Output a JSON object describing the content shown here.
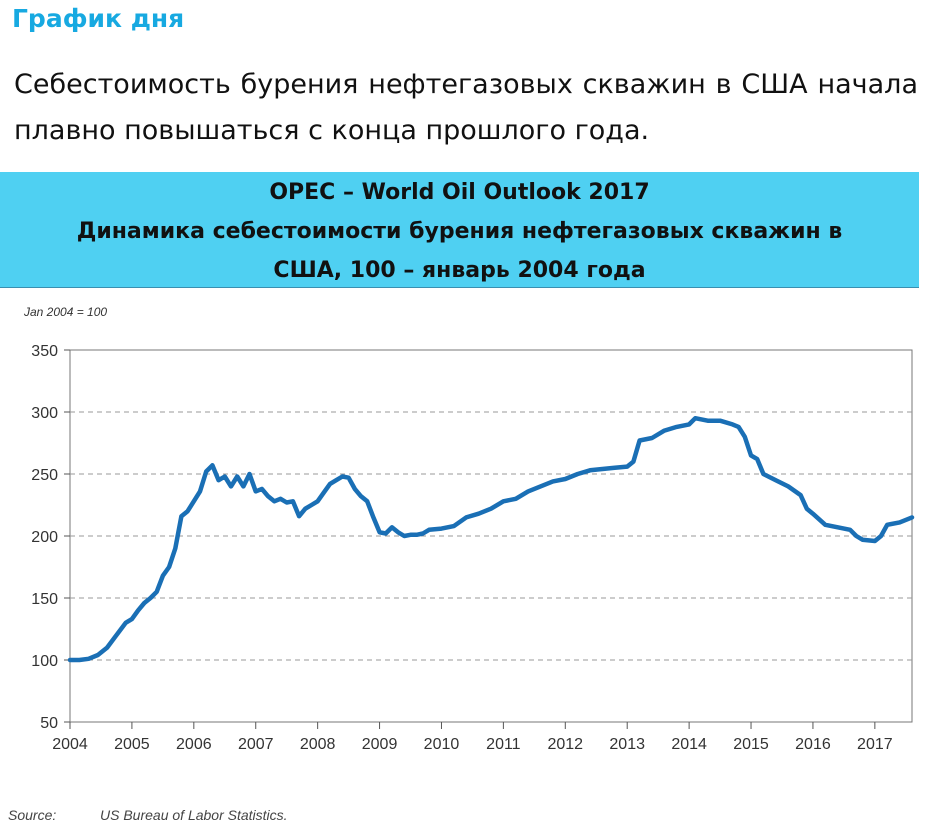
{
  "heading": "График дня",
  "lead": "Себестоимость бурения нефтегазовых скважин в США начала плавно повышаться с конца прошлого года.",
  "banner": {
    "line1": "OPEC – World Oil Outlook 2017",
    "line2": "Динамика себестоимости бурения нефтегазовых скважин в",
    "line3": "США, 100 – январь 2004 года"
  },
  "index_note": "Jan 2004 = 100",
  "source": {
    "label": "Source:",
    "text": "US Bureau of Labor Statistics."
  },
  "colors": {
    "heading": "#17a9e1",
    "banner_bg": "#4fd0f2",
    "line": "#1a6fb5",
    "grid": "#9a9a9a"
  },
  "chart_data": {
    "type": "line",
    "title": "Динамика себестоимости бурения нефтегазовых скважин в США, 100 – январь 2004 года",
    "xlabel": "",
    "ylabel": "",
    "index_note": "Jan 2004 = 100",
    "xlim": [
      2004,
      2017.6
    ],
    "ylim": [
      50,
      350
    ],
    "x_ticks": [
      "2004",
      "2005",
      "2006",
      "2007",
      "2008",
      "2009",
      "2010",
      "2011",
      "2012",
      "2013",
      "2014",
      "2015",
      "2016",
      "2017"
    ],
    "y_ticks": [
      "50",
      "100",
      "150",
      "200",
      "250",
      "300",
      "350"
    ],
    "grid": "horizontal dashed",
    "legend": "none",
    "series": [
      {
        "x": [
          2004.0,
          2004.15,
          2004.3,
          2004.45,
          2004.6,
          2004.75,
          2004.9,
          2005.0,
          2005.1,
          2005.2,
          2005.3,
          2005.4,
          2005.5,
          2005.6,
          2005.7,
          2005.8,
          2005.9,
          2006.0,
          2006.1,
          2006.2,
          2006.3,
          2006.4,
          2006.5,
          2006.6,
          2006.7,
          2006.8,
          2006.9,
          2007.0,
          2007.1,
          2007.2,
          2007.3,
          2007.4,
          2007.5,
          2007.6,
          2007.7,
          2007.8,
          2007.9,
          2008.0,
          2008.1,
          2008.2,
          2008.3,
          2008.4,
          2008.5,
          2008.6,
          2008.7,
          2008.8,
          2008.9,
          2009.0,
          2009.1,
          2009.2,
          2009.3,
          2009.4,
          2009.5,
          2009.6,
          2009.7,
          2009.8,
          2010.0,
          2010.2,
          2010.4,
          2010.6,
          2010.8,
          2011.0,
          2011.2,
          2011.4,
          2011.6,
          2011.8,
          2012.0,
          2012.2,
          2012.4,
          2012.6,
          2012.8,
          2013.0,
          2013.1,
          2013.2,
          2013.4,
          2013.6,
          2013.8,
          2014.0,
          2014.1,
          2014.3,
          2014.5,
          2014.7,
          2014.8,
          2014.9,
          2015.0,
          2015.1,
          2015.2,
          2015.4,
          2015.6,
          2015.8,
          2015.9,
          2016.0,
          2016.2,
          2016.4,
          2016.6,
          2016.7,
          2016.8,
          2017.0,
          2017.1,
          2017.2,
          2017.4,
          2017.6
        ],
        "values": [
          100,
          100,
          101,
          104,
          110,
          120,
          130,
          133,
          140,
          146,
          150,
          155,
          168,
          175,
          190,
          216,
          220,
          228,
          236,
          252,
          257,
          245,
          248,
          240,
          248,
          240,
          250,
          236,
          238,
          232,
          228,
          230,
          227,
          228,
          216,
          222,
          225,
          228,
          235,
          242,
          245,
          248,
          247,
          238,
          232,
          228,
          215,
          203,
          202,
          207,
          203,
          200,
          201,
          201,
          202,
          205,
          206,
          208,
          215,
          218,
          222,
          228,
          230,
          236,
          240,
          244,
          246,
          250,
          253,
          254,
          255,
          256,
          260,
          277,
          279,
          285,
          288,
          290,
          295,
          293,
          293,
          290,
          288,
          280,
          265,
          262,
          250,
          245,
          240,
          233,
          222,
          218,
          209,
          207,
          205,
          200,
          197,
          196,
          200,
          209,
          211,
          215
        ]
      }
    ]
  }
}
